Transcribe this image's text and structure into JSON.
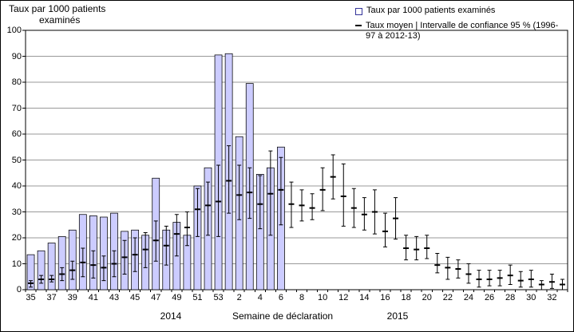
{
  "y_axis_title": {
    "line1": "Taux par 1000 patients",
    "line2": "examinés"
  },
  "x_axis": {
    "title": "Semaine de déclaration",
    "year_left": "2014",
    "year_right": "2015"
  },
  "legend": {
    "items": [
      {
        "marker": "square",
        "lines": [
          "Taux par 1000 patients examinés"
        ]
      },
      {
        "marker": "dash",
        "lines": [
          "Taux moyen | Intervalle de confiance 95 % (1996-",
          "97 à 2012-13)"
        ]
      }
    ]
  },
  "colors": {
    "bar_fill": "#ccccff",
    "bar_border": "#000000",
    "grid": "#999999",
    "axis": "#000000",
    "error": "#000000",
    "legend_square_border": "#333399"
  },
  "chart_data": {
    "type": "bar",
    "title": "Taux par 1000 patients examinés",
    "xlabel": "Semaine de déclaration",
    "ylabel": "Taux par 1000 patients examinés",
    "ylim": [
      0,
      100
    ],
    "y_ticks": [
      0,
      10,
      20,
      30,
      40,
      50,
      60,
      70,
      80,
      90,
      100
    ],
    "grid": "horizontal",
    "legend_position": "top-right",
    "label_every": 2,
    "categories": [
      "35",
      "36",
      "37",
      "38",
      "39",
      "40",
      "41",
      "42",
      "43",
      "44",
      "45",
      "46",
      "47",
      "48",
      "49",
      "50",
      "51",
      "52",
      "53",
      "1",
      "2",
      "3",
      "4",
      "5",
      "6",
      "7",
      "8",
      "9",
      "10",
      "11",
      "12",
      "13",
      "14",
      "15",
      "16",
      "17",
      "18",
      "19",
      "20",
      "21",
      "22",
      "23",
      "24",
      "25",
      "26",
      "27",
      "28",
      "29",
      "30",
      "31",
      "32",
      "33"
    ],
    "series": [
      {
        "name": "Taux par 1000 patients examinés",
        "type": "bar",
        "values": [
          13.5,
          15,
          18,
          20.5,
          23,
          29,
          28.5,
          28,
          29.5,
          22.5,
          23,
          21,
          43,
          23,
          26,
          21,
          40,
          47,
          90.5,
          91,
          59,
          79.5,
          44.5,
          47,
          55,
          null,
          null,
          null,
          null,
          null,
          null,
          null,
          null,
          null,
          null,
          null,
          null,
          null,
          null,
          null,
          null,
          null,
          null,
          null,
          null,
          null,
          null,
          null,
          null,
          null,
          null,
          null
        ]
      },
      {
        "name": "Taux moyen | Intervalle de confiance 95 % (1996-97 à 2012-13)",
        "type": "errorbar",
        "mean": [
          2.5,
          4,
          4,
          6,
          7.5,
          10.5,
          9.5,
          8.5,
          10,
          12.5,
          13.5,
          15.5,
          19,
          17,
          21.5,
          24,
          31,
          32.5,
          34,
          42,
          36.5,
          37.5,
          33,
          37,
          38.5,
          33,
          32.5,
          31.5,
          38.5,
          43.5,
          36,
          31.5,
          29,
          30,
          22.5,
          27.5,
          16,
          15.5,
          16,
          9.5,
          8.5,
          8,
          6,
          4,
          4,
          4.5,
          5.5,
          3.5,
          4,
          2,
          3,
          2
        ],
        "ci_low": [
          1,
          2.5,
          3,
          3.5,
          4,
          5,
          4.5,
          3.5,
          5,
          6,
          7,
          8.5,
          11,
          9.5,
          13,
          17,
          20.5,
          21,
          20.5,
          29.5,
          27,
          27.5,
          23.5,
          21,
          25,
          24,
          26.5,
          27,
          30.5,
          35,
          24.5,
          24,
          23,
          21.5,
          16.5,
          19.5,
          11.5,
          11.5,
          12,
          6.5,
          4,
          4.5,
          2.5,
          1,
          1.5,
          1.5,
          2,
          1,
          1,
          0,
          0.5,
          0
        ],
        "ci_high": [
          3.5,
          5.5,
          5.5,
          8.5,
          11,
          16,
          15,
          13,
          15,
          19,
          20,
          22,
          26.5,
          24.5,
          29,
          30,
          39,
          41.5,
          48,
          55.5,
          48,
          47,
          44,
          53.5,
          51,
          41.5,
          38.5,
          37,
          47,
          52,
          48.5,
          39,
          35.5,
          38.5,
          29.5,
          35.5,
          21,
          20.5,
          21,
          14,
          12.5,
          11.5,
          10,
          7.5,
          7.5,
          7.5,
          9.5,
          7,
          7.5,
          3.5,
          6,
          4
        ]
      }
    ]
  }
}
